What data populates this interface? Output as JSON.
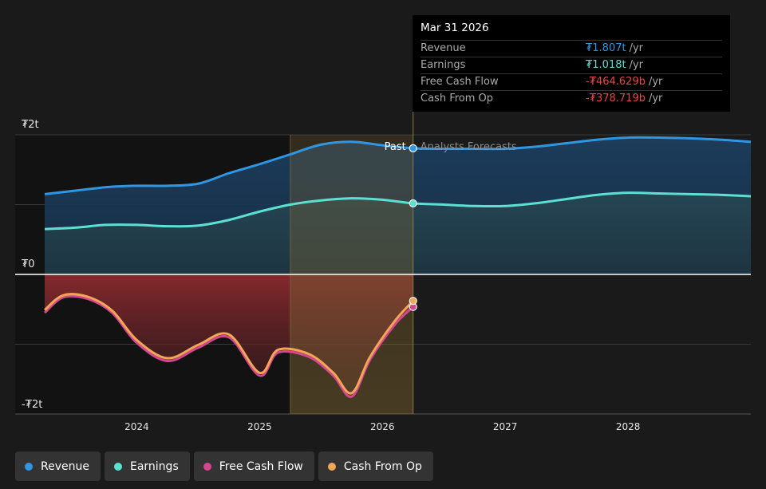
{
  "chart_data": {
    "type": "area",
    "y_axis": {
      "top_label": "₮2t",
      "zero_label": "₮0",
      "bottom_label": "-₮2t",
      "ylim": [
        -2,
        2
      ],
      "unit": "t"
    },
    "x_ticks": [
      "2024",
      "2025",
      "2026",
      "2027",
      "2028"
    ],
    "x_tick_positions": [
      2024,
      2025,
      2026,
      2027,
      2028
    ],
    "xlim": [
      2023.25,
      2029.0
    ],
    "past_label": "Past",
    "forecast_label": "Analysts Forecasts",
    "divider_x": 2026.25,
    "highlight_range": [
      2025.25,
      2026.25
    ],
    "series": [
      {
        "name": "Revenue",
        "color": "#2f96e3",
        "points": [
          [
            2023.25,
            1.15
          ],
          [
            2023.5,
            1.2
          ],
          [
            2023.75,
            1.25
          ],
          [
            2024,
            1.27
          ],
          [
            2024.25,
            1.27
          ],
          [
            2024.5,
            1.3
          ],
          [
            2024.75,
            1.45
          ],
          [
            2025,
            1.58
          ],
          [
            2025.25,
            1.72
          ],
          [
            2025.5,
            1.86
          ],
          [
            2025.75,
            1.9
          ],
          [
            2026,
            1.85
          ],
          [
            2026.25,
            1.807
          ],
          [
            2026.5,
            1.8
          ],
          [
            2026.75,
            1.8
          ],
          [
            2027,
            1.8
          ],
          [
            2027.25,
            1.83
          ],
          [
            2027.5,
            1.88
          ],
          [
            2027.75,
            1.93
          ],
          [
            2028,
            1.96
          ],
          [
            2028.25,
            1.96
          ],
          [
            2028.5,
            1.95
          ],
          [
            2028.75,
            1.93
          ],
          [
            2029,
            1.9
          ]
        ]
      },
      {
        "name": "Earnings",
        "color": "#5ce0d2",
        "points": [
          [
            2023.25,
            0.65
          ],
          [
            2023.5,
            0.67
          ],
          [
            2023.75,
            0.71
          ],
          [
            2024,
            0.71
          ],
          [
            2024.25,
            0.69
          ],
          [
            2024.5,
            0.7
          ],
          [
            2024.75,
            0.78
          ],
          [
            2025,
            0.9
          ],
          [
            2025.25,
            1.0
          ],
          [
            2025.5,
            1.06
          ],
          [
            2025.75,
            1.09
          ],
          [
            2026,
            1.07
          ],
          [
            2026.25,
            1.018
          ],
          [
            2026.5,
            1.0
          ],
          [
            2026.75,
            0.98
          ],
          [
            2027,
            0.98
          ],
          [
            2027.25,
            1.02
          ],
          [
            2027.5,
            1.08
          ],
          [
            2027.75,
            1.14
          ],
          [
            2028,
            1.17
          ],
          [
            2028.25,
            1.16
          ],
          [
            2028.5,
            1.15
          ],
          [
            2028.75,
            1.14
          ],
          [
            2029,
            1.12
          ]
        ]
      },
      {
        "name": "Free Cash Flow",
        "color": "#d4468f",
        "points": [
          [
            2023.25,
            -0.55
          ],
          [
            2023.4,
            -0.33
          ],
          [
            2023.6,
            -0.35
          ],
          [
            2023.8,
            -0.55
          ],
          [
            2024,
            -0.98
          ],
          [
            2024.25,
            -1.24
          ],
          [
            2024.5,
            -1.05
          ],
          [
            2024.75,
            -0.9
          ],
          [
            2025,
            -1.45
          ],
          [
            2025.15,
            -1.12
          ],
          [
            2025.4,
            -1.18
          ],
          [
            2025.6,
            -1.45
          ],
          [
            2025.75,
            -1.75
          ],
          [
            2025.9,
            -1.22
          ],
          [
            2026.1,
            -0.72
          ],
          [
            2026.25,
            -0.465
          ]
        ]
      },
      {
        "name": "Cash From Op",
        "color": "#f3a655",
        "points": [
          [
            2023.25,
            -0.51
          ],
          [
            2023.4,
            -0.3
          ],
          [
            2023.6,
            -0.32
          ],
          [
            2023.8,
            -0.52
          ],
          [
            2024,
            -0.94
          ],
          [
            2024.25,
            -1.2
          ],
          [
            2024.5,
            -1.01
          ],
          [
            2024.75,
            -0.86
          ],
          [
            2025,
            -1.41
          ],
          [
            2025.15,
            -1.08
          ],
          [
            2025.4,
            -1.14
          ],
          [
            2025.6,
            -1.41
          ],
          [
            2025.75,
            -1.7
          ],
          [
            2025.9,
            -1.18
          ],
          [
            2026.1,
            -0.67
          ],
          [
            2026.25,
            -0.379
          ]
        ]
      }
    ],
    "tooltip": {
      "date": "Mar 31 2026",
      "rows": [
        {
          "name": "Revenue",
          "value": "₮1.807t",
          "unit": "/yr",
          "color": "#2f96e3"
        },
        {
          "name": "Earnings",
          "value": "₮1.018t",
          "unit": "/yr",
          "color": "#5ce0d2"
        },
        {
          "name": "Free Cash Flow",
          "value": "-₮464.629b",
          "unit": "/yr",
          "color": "#e84545"
        },
        {
          "name": "Cash From Op",
          "value": "-₮378.719b",
          "unit": "/yr",
          "color": "#e84545"
        }
      ]
    }
  },
  "legend": [
    {
      "label": "Revenue",
      "color": "#2f96e3"
    },
    {
      "label": "Earnings",
      "color": "#5ce0d2"
    },
    {
      "label": "Free Cash Flow",
      "color": "#d4468f"
    },
    {
      "label": "Cash From Op",
      "color": "#f3a655"
    }
  ]
}
